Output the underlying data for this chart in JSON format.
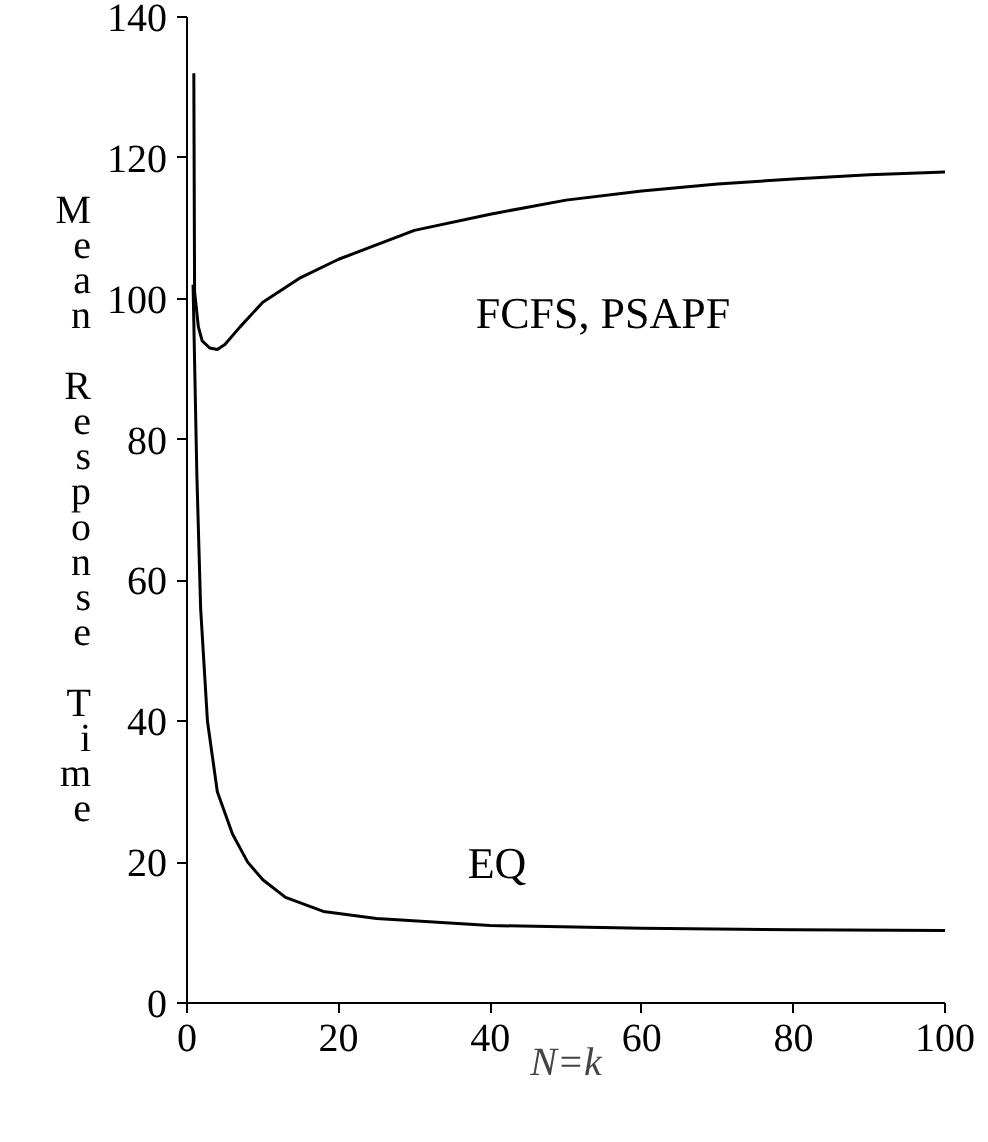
{
  "chart_data": {
    "type": "line",
    "xlabel": "N=k",
    "ylabel": "Mean Response Time",
    "xlim": [
      0,
      100
    ],
    "ylim": [
      0,
      140
    ],
    "xticks": [
      0,
      20,
      40,
      60,
      80,
      100
    ],
    "yticks": [
      0,
      20,
      40,
      60,
      80,
      100,
      120,
      140
    ],
    "grid": false,
    "marker": "none",
    "line_style": "solid",
    "series": [
      {
        "color": "#000000",
        "x": [
          0.9,
          1,
          1.5,
          2,
          3,
          4,
          5,
          7,
          10,
          15,
          20,
          30,
          40,
          50,
          60,
          70,
          80,
          90,
          100
        ],
        "values": [
          132,
          101,
          96,
          94,
          93,
          92.8,
          93.5,
          96,
          99.5,
          103,
          105.6,
          109.7,
          112,
          114,
          115.3,
          116.3,
          117,
          117.6,
          118
        ]
      },
      {
        "color": "#000000",
        "x": [
          0.8,
          1.3,
          1.8,
          2.7,
          4,
          6,
          8,
          10,
          13,
          18,
          25,
          40,
          60,
          80,
          100
        ],
        "values": [
          102,
          75,
          56,
          40,
          30,
          24,
          20,
          17.5,
          15,
          13,
          12,
          11,
          10.6,
          10.4,
          10.3
        ]
      }
    ],
    "annotations": [
      "FCFS, PSAPF",
      "EQ"
    ]
  }
}
